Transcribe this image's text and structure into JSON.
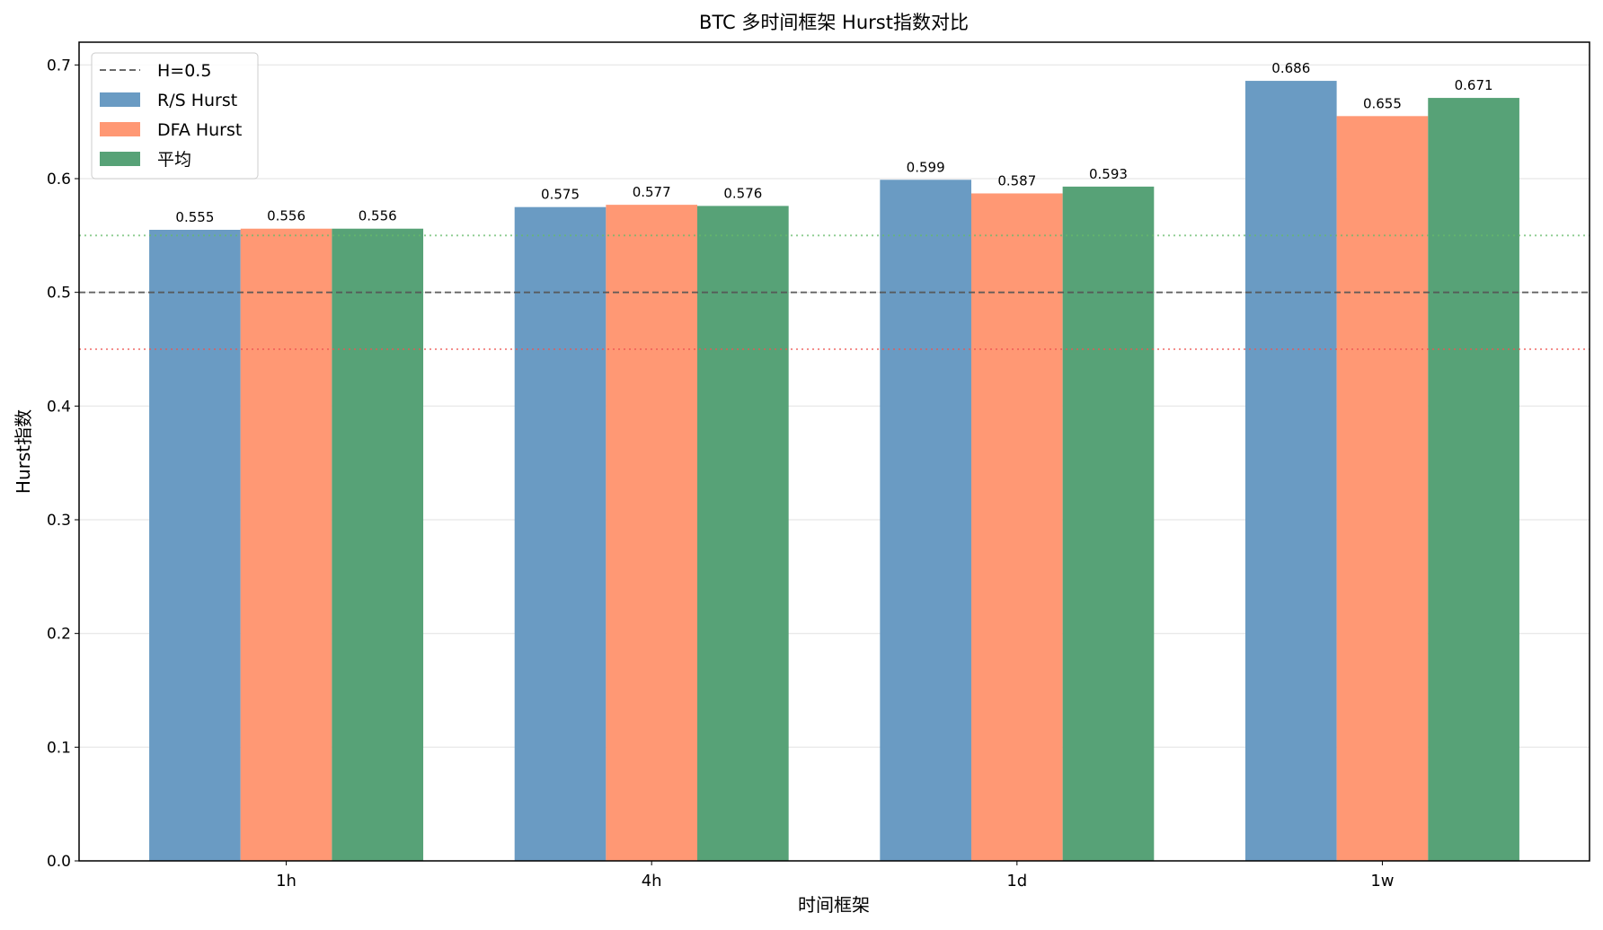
{
  "chart_data": {
    "type": "bar",
    "title": "BTC 多时间框架 Hurst指数对比",
    "xlabel": "时间框架",
    "ylabel": "Hurst指数",
    "categories": [
      "1h",
      "4h",
      "1d",
      "1w"
    ],
    "series": [
      {
        "name": "R/S Hurst",
        "color": "#6a9bc3",
        "values": [
          0.555,
          0.575,
          0.599,
          0.686
        ],
        "labels": [
          "0.555",
          "0.575",
          "0.599",
          "0.686"
        ]
      },
      {
        "name": "DFA Hurst",
        "color": "#ff9874",
        "values": [
          0.556,
          0.577,
          0.587,
          0.655
        ],
        "labels": [
          "0.556",
          "0.577",
          "0.587",
          "0.655"
        ]
      },
      {
        "name": "平均",
        "color": "#57a277",
        "values": [
          0.556,
          0.576,
          0.593,
          0.671
        ],
        "labels": [
          "0.556",
          "0.576",
          "0.593",
          "0.671"
        ]
      }
    ],
    "ylim": [
      0,
      0.72
    ],
    "yticks": [
      "0.0",
      "0.1",
      "0.2",
      "0.3",
      "0.4",
      "0.5",
      "0.6",
      "0.7"
    ],
    "grid": "y",
    "legend_placement": "top-left",
    "reference_lines": [
      {
        "name": "H=0.5",
        "y": 0.5,
        "style": "dashed",
        "color": "#555555",
        "in_legend": true
      },
      {
        "y": 0.55,
        "style": "dotted",
        "color": "#66bb6a",
        "in_legend": false
      },
      {
        "y": 0.45,
        "style": "dotted",
        "color": "#ef5350",
        "in_legend": false
      }
    ]
  }
}
